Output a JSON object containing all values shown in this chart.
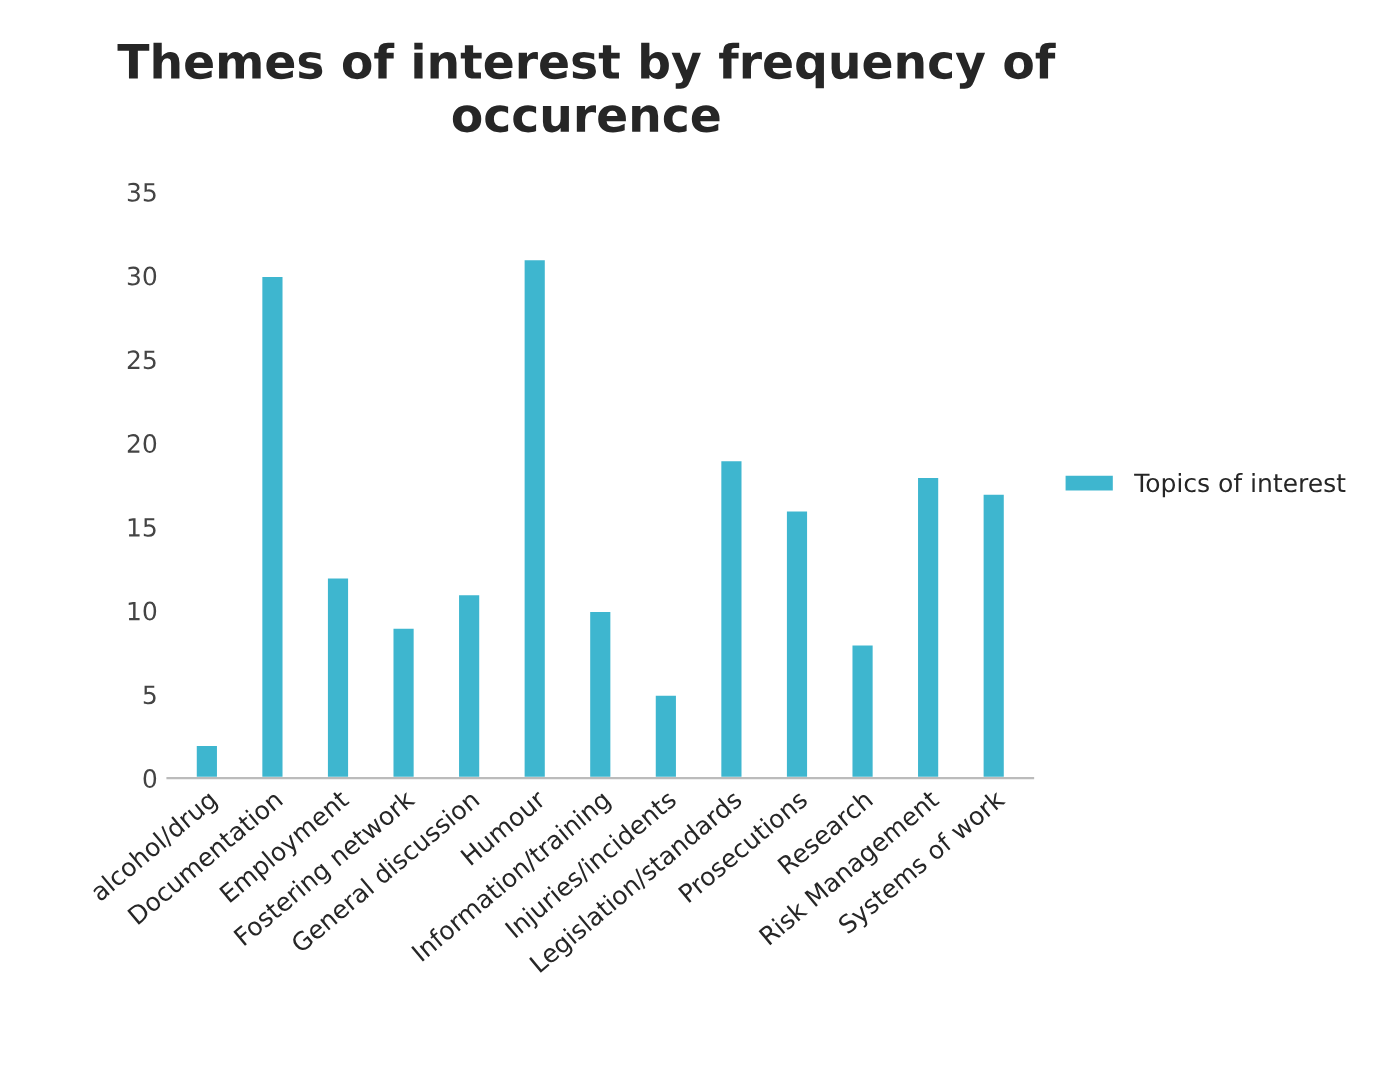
{
  "chart_data": {
    "type": "bar",
    "title": "Themes of interest by frequency of occurence",
    "categories": [
      "alcohol/drug",
      "Documentation",
      "Employment",
      "Fostering network",
      "General discussion",
      "Humour",
      "Information/training",
      "Injuries/incidents",
      "Legislation/standards",
      "Prosecutions",
      "Research",
      "Risk Management",
      "Systems of work"
    ],
    "series": [
      {
        "name": "Topics of interest",
        "color": "#3eb6cf",
        "values": [
          2,
          30,
          12,
          9,
          11,
          31,
          10,
          5,
          19,
          16,
          8,
          18,
          17
        ]
      }
    ],
    "ylim": [
      0,
      35
    ],
    "yticks": [
      0,
      5,
      10,
      15,
      20,
      25,
      30,
      35
    ],
    "grid": false,
    "legend": "right"
  }
}
